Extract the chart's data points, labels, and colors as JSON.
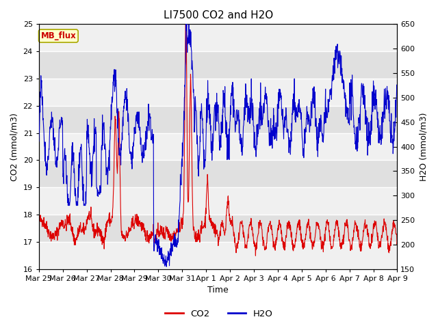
{
  "title": "LI7500 CO2 and H2O",
  "xlabel": "Time",
  "ylabel_left": "CO2 (mmol/m3)",
  "ylabel_right": "H2O (mmol/m3)",
  "ylim_left": [
    16.0,
    25.0
  ],
  "ylim_right": [
    150,
    650
  ],
  "yticks_left": [
    16.0,
    17.0,
    18.0,
    19.0,
    20.0,
    21.0,
    22.0,
    23.0,
    24.0,
    25.0
  ],
  "yticks_right": [
    150,
    200,
    250,
    300,
    350,
    400,
    450,
    500,
    550,
    600,
    650
  ],
  "xtick_labels": [
    "Mar 25",
    "Mar 26",
    "Mar 27",
    "Mar 28",
    "Mar 29",
    "Mar 30",
    "Mar 31",
    "Apr 1",
    "Apr 2",
    "Apr 3",
    "Apr 4",
    "Apr 5",
    "Apr 6",
    "Apr 7",
    "Apr 8",
    "Apr 9"
  ],
  "text_box_label": "MB_flux",
  "text_box_bg": "#ffffcc",
  "text_box_edge": "#aaa800",
  "text_box_color": "#cc0000",
  "legend_co2_label": "CO2",
  "legend_h2o_label": "H2O",
  "co2_color": "#dd0000",
  "h2o_color": "#0000cc",
  "background_color": "#ffffff",
  "plot_bg_light": "#f0f0f0",
  "plot_bg_dark": "#e0e0e0",
  "grid_color": "#ffffff",
  "title_fontsize": 11,
  "axis_label_fontsize": 9,
  "tick_fontsize": 8
}
